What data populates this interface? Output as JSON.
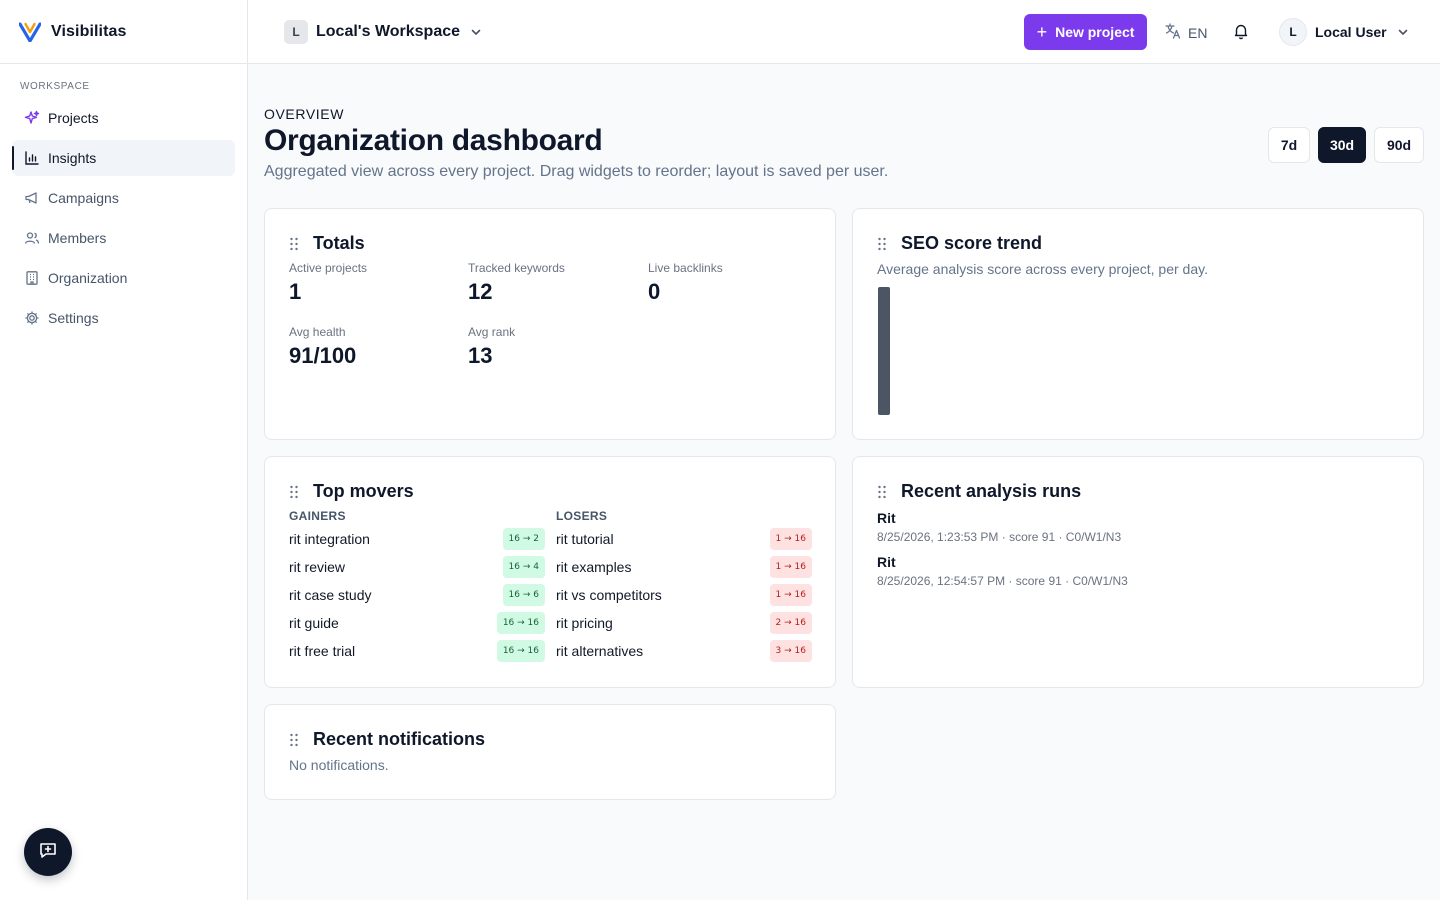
{
  "app": {
    "brand_name": "Visibilitas",
    "brand_color": "#2563eb",
    "accent_color": "#7c3aed"
  },
  "sidebar": {
    "section_label": "WORKSPACE",
    "items": [
      {
        "label": "Projects",
        "icon": "sparkles-icon"
      },
      {
        "label": "Insights",
        "icon": "bar-chart-icon",
        "active": true
      },
      {
        "label": "Campaigns",
        "icon": "megaphone-icon"
      },
      {
        "label": "Members",
        "icon": "users-icon"
      },
      {
        "label": "Organization",
        "icon": "building-icon"
      },
      {
        "label": "Settings",
        "icon": "gear-icon"
      }
    ],
    "chat_icon": "message-plus-icon"
  },
  "header": {
    "workspace_initial": "L",
    "workspace_name": "Local's Workspace",
    "new_project_label": "New project",
    "language": "EN",
    "user_initial": "L",
    "user_name": "Local User"
  },
  "page": {
    "eyebrow": "OVERVIEW",
    "title": "Organization dashboard",
    "subtitle": "Aggregated view across every project. Drag widgets to reorder; layout is saved per user.",
    "ranges": [
      "7d",
      "30d",
      "90d"
    ],
    "selected_range": "30d"
  },
  "totals": {
    "title": "Totals",
    "stats": [
      {
        "label": "Active projects",
        "value": "1"
      },
      {
        "label": "Tracked keywords",
        "value": "12"
      },
      {
        "label": "Live backlinks",
        "value": "0"
      },
      {
        "label": "Avg health",
        "value": "91/100"
      },
      {
        "label": "Avg rank",
        "value": "13"
      }
    ]
  },
  "seo_trend": {
    "title": "SEO score trend",
    "description": "Average analysis score across every project, per day.",
    "chart_data": {
      "type": "bar",
      "values": [
        91
      ],
      "color": "#4b5563"
    }
  },
  "top_movers": {
    "title": "Top movers",
    "gainers_label": "GAINERS",
    "losers_label": "LOSERS",
    "gainers": [
      {
        "keyword": "rit integration",
        "change": "16 → 2"
      },
      {
        "keyword": "rit review",
        "change": "16 → 4"
      },
      {
        "keyword": "rit case study",
        "change": "16 → 6"
      },
      {
        "keyword": "rit guide",
        "change": "16 → 16"
      },
      {
        "keyword": "rit free trial",
        "change": "16 → 16"
      }
    ],
    "losers": [
      {
        "keyword": "rit tutorial",
        "change": "1 → 16"
      },
      {
        "keyword": "rit examples",
        "change": "1 → 16"
      },
      {
        "keyword": "rit vs competitors",
        "change": "1 → 16"
      },
      {
        "keyword": "rit pricing",
        "change": "2 → 16"
      },
      {
        "keyword": "rit alternatives",
        "change": "3 → 16"
      }
    ]
  },
  "recent_runs": {
    "title": "Recent analysis runs",
    "runs": [
      {
        "name": "Rit",
        "meta": "8/25/2026, 1:23:53 PM · score 91 · C0/W1/N3"
      },
      {
        "name": "Rit",
        "meta": "8/25/2026, 12:54:57 PM · score 91 · C0/W1/N3"
      }
    ]
  },
  "notifications": {
    "title": "Recent notifications",
    "empty_text": "No notifications."
  }
}
